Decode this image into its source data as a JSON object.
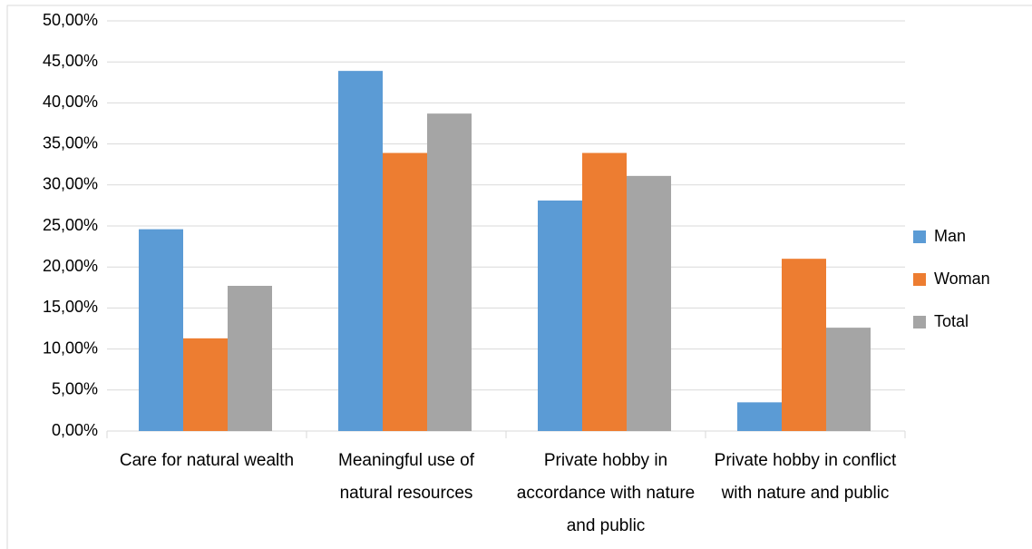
{
  "chart_data": {
    "type": "bar",
    "categories": [
      "Care for natural wealth",
      "Meaningful use of natural resources",
      "Private hobby in accordance with nature and public",
      "Private hobby in conflict with nature and public"
    ],
    "series": [
      {
        "name": "Man",
        "color": "#5b9bd5",
        "values": [
          24.6,
          43.9,
          28.1,
          3.5
        ]
      },
      {
        "name": "Woman",
        "color": "#ed7d31",
        "values": [
          11.3,
          33.9,
          33.9,
          21.0
        ]
      },
      {
        "name": "Total",
        "color": "#a5a5a5",
        "values": [
          17.7,
          38.7,
          31.1,
          12.6
        ]
      }
    ],
    "ylim": [
      0,
      50
    ],
    "yticks": [
      {
        "value": 0,
        "label": "0,00%"
      },
      {
        "value": 5,
        "label": "5,00%"
      },
      {
        "value": 10,
        "label": "10,00%"
      },
      {
        "value": 15,
        "label": "15,00%"
      },
      {
        "value": 20,
        "label": "20,00%"
      },
      {
        "value": 25,
        "label": "25,00%"
      },
      {
        "value": 30,
        "label": "30,00%"
      },
      {
        "value": 35,
        "label": "35,00%"
      },
      {
        "value": 40,
        "label": "40,00%"
      },
      {
        "value": 45,
        "label": "45,00%"
      },
      {
        "value": 50,
        "label": "50,00%"
      }
    ],
    "grid": true,
    "legend": "right"
  }
}
